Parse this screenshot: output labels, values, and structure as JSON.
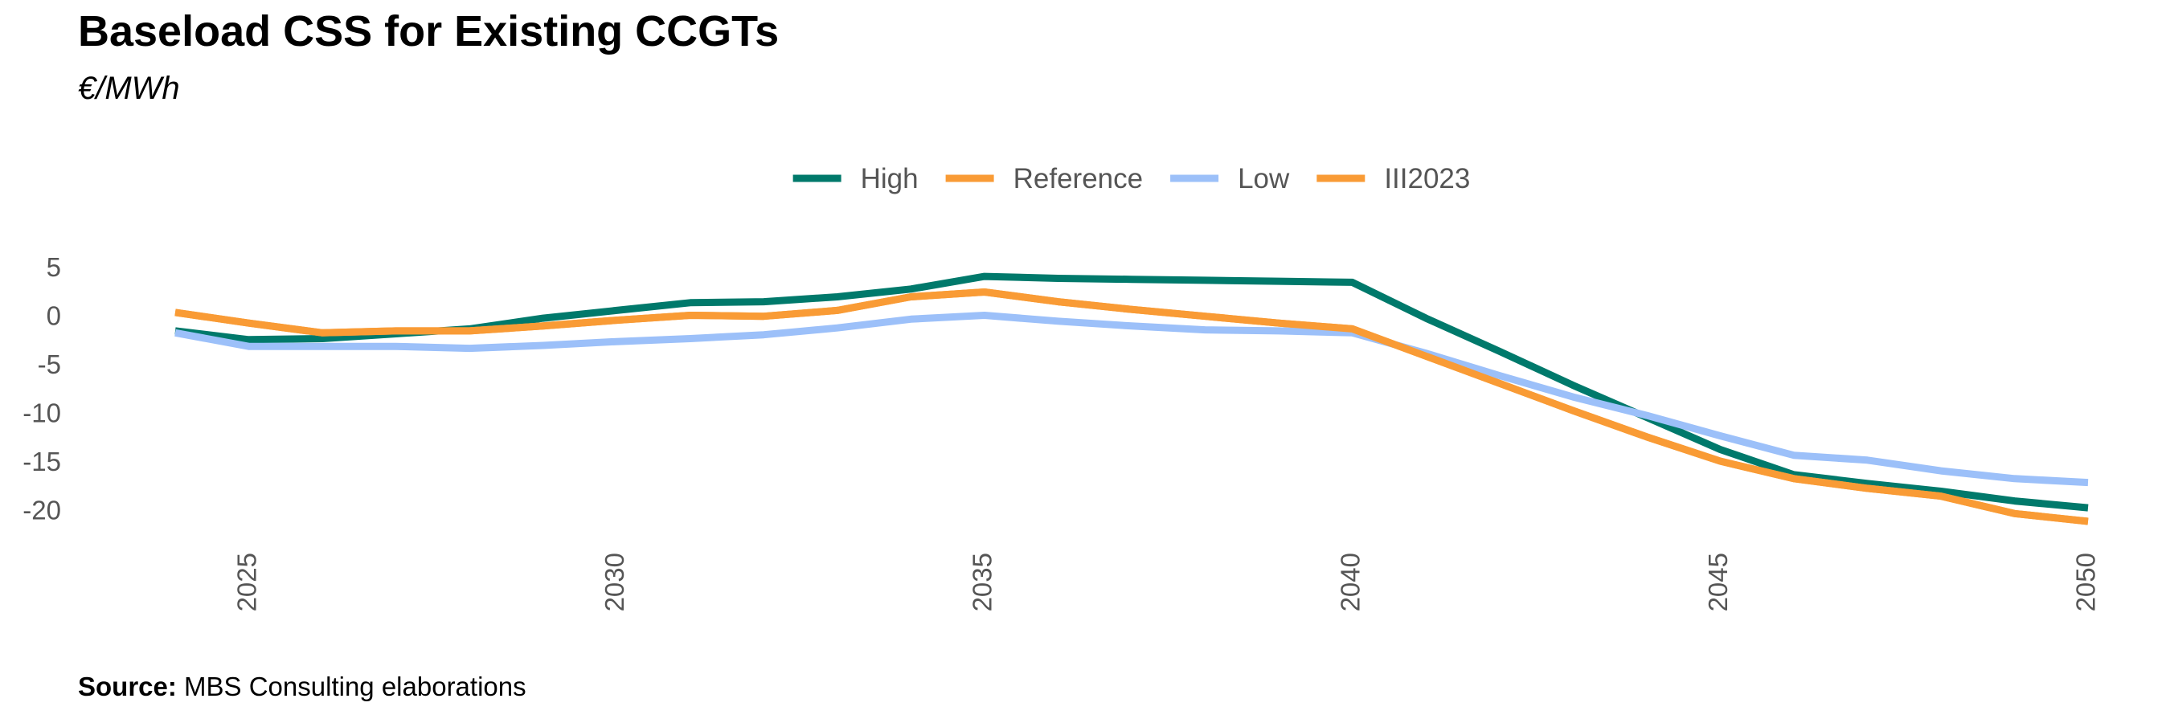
{
  "title": "Baseload CSS for Existing CCGTs",
  "subtitle": "€/MWh",
  "source": {
    "label": "Source:",
    "text": "MBS Consulting elaborations"
  },
  "chart_data": {
    "type": "line",
    "title": "Baseload CSS for Existing CCGTs",
    "subtitle": "€/MWh",
    "xlabel": "",
    "ylabel": "",
    "x": [
      2024,
      2025,
      2026,
      2027,
      2028,
      2029,
      2030,
      2031,
      2032,
      2033,
      2034,
      2035,
      2036,
      2037,
      2038,
      2039,
      2040,
      2041,
      2042,
      2043,
      2044,
      2045,
      2046,
      2047,
      2048,
      2049,
      2050
    ],
    "xticks": [
      2025,
      2030,
      2035,
      2040,
      2045,
      2050
    ],
    "yticks": [
      5,
      0,
      -5,
      -10,
      -15,
      -20
    ],
    "xlim": [
      2024,
      2050
    ],
    "ylim": [
      -21,
      5
    ],
    "grid": false,
    "legend": "top-center",
    "series": [
      {
        "name": "High",
        "color": "#00796b",
        "values": [
          -1.6,
          -2.5,
          -2.4,
          -1.9,
          -1.4,
          -0.3,
          0.5,
          1.3,
          1.4,
          1.9,
          2.7,
          4.0,
          3.8,
          3.7,
          3.6,
          3.5,
          3.4,
          -0.3,
          -3.7,
          -7.2,
          -10.5,
          -13.8,
          -16.4,
          -17.3,
          -18.1,
          -19.1,
          -19.8
        ]
      },
      {
        "name": "Reference",
        "color": "#f99b35",
        "values": [
          0.3,
          -0.8,
          -1.8,
          -1.6,
          -1.6,
          -1.1,
          -0.5,
          0.0,
          -0.1,
          0.5,
          1.9,
          2.4,
          1.4,
          0.6,
          -0.1,
          -0.8,
          -1.4,
          -4.2,
          -7.0,
          -9.8,
          -12.5,
          -15.0,
          -16.8,
          -17.8,
          -18.6,
          -20.4,
          -21.2
        ]
      },
      {
        "name": "Low",
        "color": "#9cc0f9",
        "values": [
          -1.8,
          -3.2,
          -3.2,
          -3.2,
          -3.4,
          -3.1,
          -2.7,
          -2.4,
          -2.0,
          -1.3,
          -0.4,
          0.0,
          -0.6,
          -1.1,
          -1.5,
          -1.6,
          -1.8,
          -3.9,
          -6.2,
          -8.4,
          -10.3,
          -12.4,
          -14.4,
          -14.9,
          -16.0,
          -16.8,
          -17.2
        ]
      },
      {
        "name": "III2023",
        "color": "#f99b35",
        "values": [
          0.3,
          -0.8,
          -1.8,
          -1.6,
          -1.6,
          -1.1,
          -0.5,
          0.0,
          -0.1,
          0.5,
          1.9,
          2.4,
          1.4,
          0.6,
          -0.1,
          -0.8,
          -1.4,
          -4.2,
          -7.0,
          -9.8,
          -12.5,
          -15.0,
          -16.8,
          -17.8,
          -18.6,
          -20.4,
          -21.2
        ]
      }
    ]
  }
}
